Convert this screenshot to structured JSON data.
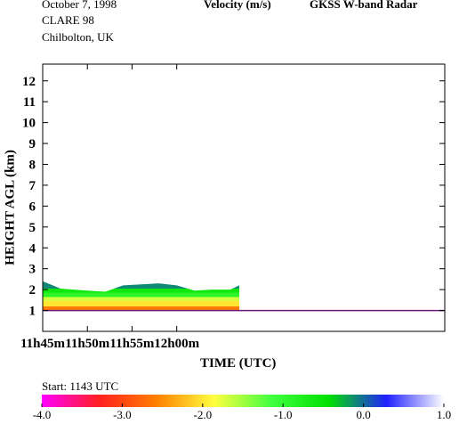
{
  "header": {
    "date": "October   7, 1998",
    "campaign": "CLARE 98",
    "site": "Chilbolton, UK",
    "quantity": "Velocity (m/s)",
    "instrument": "GKSS  W-band Radar"
  },
  "start_label": "Start: 1143 UTC",
  "chart_data": {
    "type": "heatmap",
    "title": "Velocity (m/s)",
    "xlabel": "TIME (UTC)",
    "ylabel": "HEIGHT AGL (km)",
    "x_range_minutes": [
      705,
      750
    ],
    "ylim": [
      0,
      12.8
    ],
    "x_ticks": [
      {
        "minute": 705,
        "label": "11h45m"
      },
      {
        "minute": 710,
        "label": "11h50m"
      },
      {
        "minute": 715,
        "label": "11h55m"
      },
      {
        "minute": 720,
        "label": "12h00m"
      }
    ],
    "y_ticks": [
      1,
      2,
      3,
      4,
      5,
      6,
      7,
      8,
      9,
      10,
      11,
      12
    ],
    "colorbar": {
      "range": [
        -4.0,
        1.0
      ],
      "tick_values": [
        -4.0,
        -3.0,
        -2.0,
        -1.0,
        0.0,
        1.0
      ],
      "tick_labels": [
        "-4.0",
        "-3.0",
        "-2.0",
        "-1.0",
        "0.0",
        "1.0"
      ],
      "stops": [
        "#ff00ff",
        "#ff2020",
        "#ff8000",
        "#ffff40",
        "#40ff40",
        "#00e000",
        "#2020ff",
        "#ffffff"
      ]
    },
    "echo_layer": {
      "base_km": 1.0,
      "top_km_profile": [
        {
          "minute": 705,
          "top_km": 2.4
        },
        {
          "minute": 707,
          "top_km": 2.05
        },
        {
          "minute": 710,
          "top_km": 1.95
        },
        {
          "minute": 712,
          "top_km": 1.9
        },
        {
          "minute": 714,
          "top_km": 2.2
        },
        {
          "minute": 716,
          "top_km": 2.25
        },
        {
          "minute": 718,
          "top_km": 2.3
        },
        {
          "minute": 720,
          "top_km": 2.2
        },
        {
          "minute": 722,
          "top_km": 1.95
        },
        {
          "minute": 724,
          "top_km": 2.0
        },
        {
          "minute": 726,
          "top_km": 2.0
        },
        {
          "minute": 727,
          "top_km": 2.2
        }
      ],
      "velocity_bands": [
        {
          "from_km": 1.0,
          "to_km": 1.2,
          "velocity_mps": -2.6
        },
        {
          "from_km": 1.2,
          "to_km": 1.45,
          "velocity_mps": -2.0
        },
        {
          "from_km": 1.45,
          "to_km": 1.65,
          "velocity_mps": -1.7
        },
        {
          "from_km": 1.65,
          "to_km": 1.85,
          "velocity_mps": -0.9
        },
        {
          "from_km": 1.85,
          "to_km": 2.05,
          "velocity_mps": -0.6
        },
        {
          "from_km": 2.05,
          "to_km": 2.4,
          "velocity_mps": -0.1
        }
      ]
    }
  }
}
